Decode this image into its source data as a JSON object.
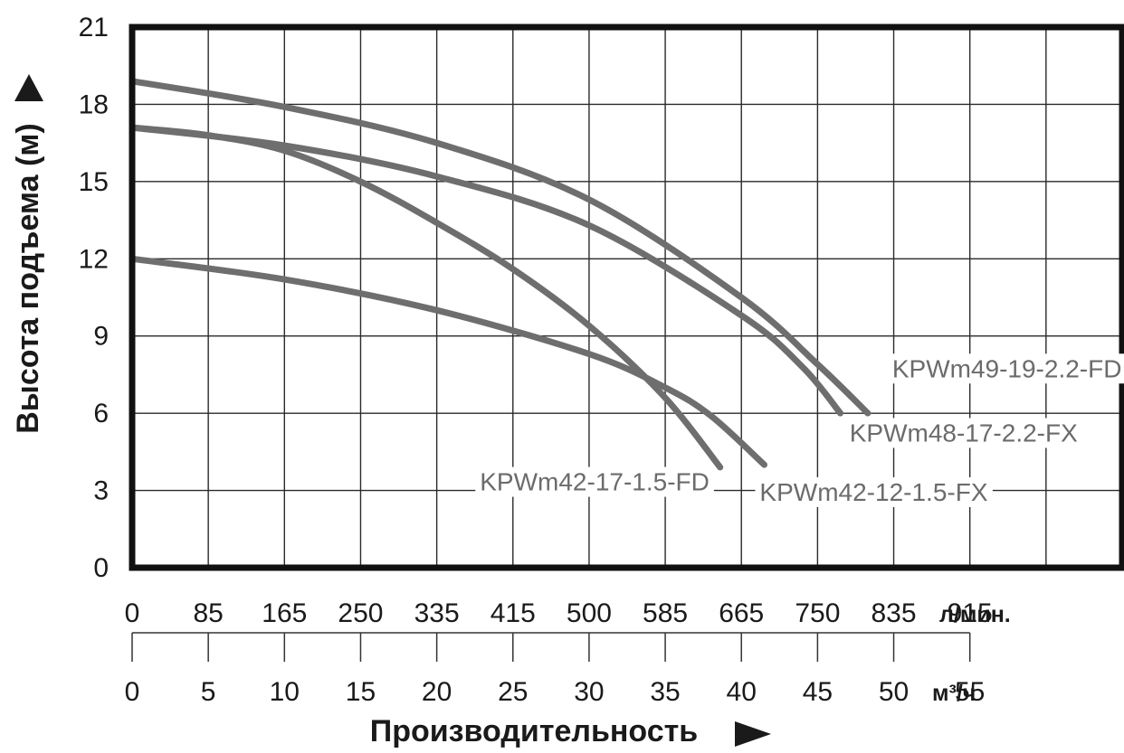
{
  "chart_data": {
    "type": "line",
    "title": "",
    "ylabel": "Высота подъема (м)",
    "xlabel": "Производительность",
    "ylim": [
      0,
      21
    ],
    "yticks": [
      "0",
      "3",
      "6",
      "9",
      "12",
      "15",
      "18",
      "21"
    ],
    "grid": true,
    "x_axis_lpm": {
      "unit": "л/мин.",
      "ticks": [
        "0",
        "85",
        "165",
        "250",
        "335",
        "415",
        "500",
        "585",
        "665",
        "750",
        "835",
        "915"
      ]
    },
    "x_axis_m3h": {
      "unit": "м³/ч",
      "ticks": [
        "0",
        "5",
        "10",
        "15",
        "20",
        "25",
        "30",
        "35",
        "40",
        "45",
        "50",
        "55"
      ]
    },
    "x_unit": "m3/h",
    "xlim": [
      0,
      65
    ],
    "line_color": "#6e6e6e",
    "series": [
      {
        "name": "KPWm49-19-2.2-FD",
        "x": [
          0,
          10,
          20,
          30,
          40,
          45,
          48.3
        ],
        "y": [
          18.9,
          17.9,
          16.5,
          14.3,
          10.5,
          7.9,
          6.0
        ]
      },
      {
        "name": "KPWm48-17-2.2-FX",
        "x": [
          0,
          10,
          20,
          30,
          40,
          44,
          46.5
        ],
        "y": [
          17.1,
          16.4,
          15.2,
          13.3,
          9.8,
          7.8,
          6.0
        ]
      },
      {
        "name": "KPWm42-17-1.5-FD",
        "x": [
          0,
          5,
          10,
          15,
          20,
          25,
          30,
          35,
          38.6
        ],
        "y": [
          17.1,
          16.8,
          16.2,
          15.0,
          13.4,
          11.6,
          9.4,
          6.6,
          3.9
        ]
      },
      {
        "name": "KPWm42-12-1.5-FX",
        "x": [
          0,
          10,
          20,
          30,
          35,
          38,
          41.5
        ],
        "y": [
          12.0,
          11.2,
          10.0,
          8.3,
          7.0,
          5.9,
          4.0
        ]
      }
    ],
    "series_label_positions": [
      {
        "series": "KPWm49-19-2.2-FD",
        "x": 49.9,
        "y": 7.4,
        "anchor": "start"
      },
      {
        "series": "KPWm48-17-2.2-FX",
        "x": 47.1,
        "y": 4.9,
        "anchor": "start"
      },
      {
        "series": "KPWm42-17-1.5-FD",
        "x": 37.9,
        "y": 3.0,
        "anchor": "end"
      },
      {
        "series": "KPWm42-12-1.5-FX",
        "x": 41.2,
        "y": 2.6,
        "anchor": "start"
      }
    ]
  }
}
